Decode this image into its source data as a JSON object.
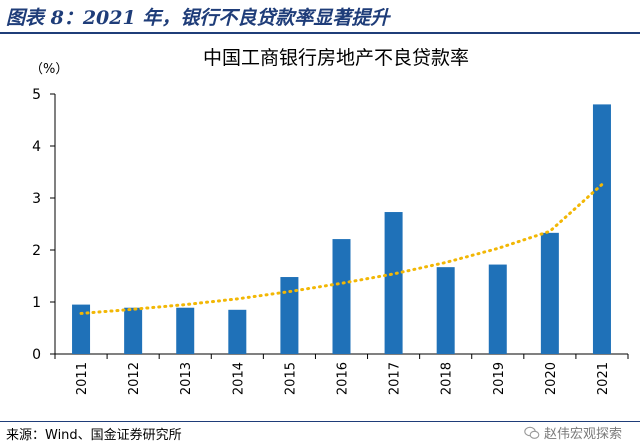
{
  "figure": {
    "header": "图表 8：2021 年，银行不良贷款率显著提升",
    "source": "来源：Wind、国金证券研究所",
    "watermark": "赵伟宏观探索"
  },
  "chart_data": {
    "type": "bar",
    "title": "中国工商银行房地产不良贷款率",
    "ylabel": "（%）",
    "xlabel": "",
    "categories": [
      "2011",
      "2012",
      "2013",
      "2014",
      "2015",
      "2016",
      "2017",
      "2018",
      "2019",
      "2020",
      "2021"
    ],
    "values": [
      0.95,
      0.89,
      0.89,
      0.85,
      1.48,
      2.21,
      2.73,
      1.67,
      1.72,
      2.33,
      4.8
    ],
    "trend_values": [
      0.78,
      0.86,
      0.95,
      1.06,
      1.2,
      1.36,
      1.54,
      1.76,
      2.03,
      2.36,
      3.26
    ],
    "ylim": [
      0,
      5
    ],
    "yticks": [
      "0",
      "1",
      "2",
      "3",
      "4",
      "5"
    ],
    "grid": false,
    "legend": "none",
    "colors": {
      "bar": "#1f71b8",
      "trend": "#f2b705",
      "header": "#1f3d79"
    }
  }
}
